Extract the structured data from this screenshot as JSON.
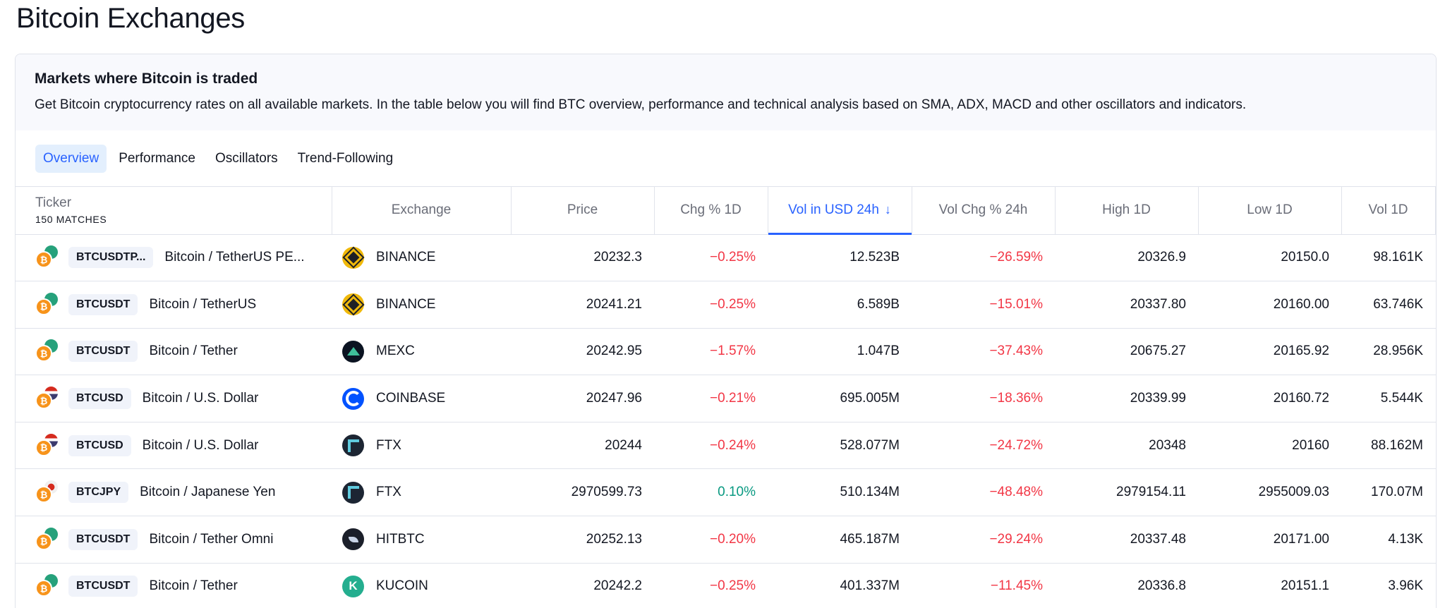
{
  "page": {
    "title": "Bitcoin Exchanges"
  },
  "card": {
    "heading": "Markets where Bitcoin is traded",
    "description": "Get Bitcoin cryptocurrency rates on all available markets. In the table below you will find BTC overview, performance and technical analysis based on SMA, ADX, MACD and other oscillators and indicators."
  },
  "tabs": [
    {
      "label": "Overview",
      "active": true
    },
    {
      "label": "Performance",
      "active": false
    },
    {
      "label": "Oscillators",
      "active": false
    },
    {
      "label": "Trend-Following",
      "active": false
    }
  ],
  "table": {
    "columns": {
      "ticker": "Ticker",
      "matches": "150 MATCHES",
      "exchange": "Exchange",
      "price": "Price",
      "chg": "Chg % 1D",
      "vol_usd": "Vol in USD 24h",
      "vol_chg": "Vol Chg % 24h",
      "high": "High 1D",
      "low": "Low 1D",
      "vol": "Vol 1D"
    },
    "sort_icon": "arrow-down-icon",
    "rows": [
      {
        "symbol": "BTCUSDTP...",
        "quote": "usdt",
        "name": "Bitcoin / TetherUS PE...",
        "exchange": "BINANCE",
        "logo": "binance",
        "price": "20232.3",
        "chg": "−0.25%",
        "chg_dir": "neg",
        "vol_usd": "12.523B",
        "vol_chg": "−26.59%",
        "high": "20326.9",
        "low": "20150.0",
        "vol": "98.161K"
      },
      {
        "symbol": "BTCUSDT",
        "quote": "usdt",
        "name": "Bitcoin / TetherUS",
        "exchange": "BINANCE",
        "logo": "binance",
        "price": "20241.21",
        "chg": "−0.25%",
        "chg_dir": "neg",
        "vol_usd": "6.589B",
        "vol_chg": "−15.01%",
        "high": "20337.80",
        "low": "20160.00",
        "vol": "63.746K"
      },
      {
        "symbol": "BTCUSDT",
        "quote": "usdt",
        "name": "Bitcoin / Tether",
        "exchange": "MEXC",
        "logo": "mexc",
        "price": "20242.95",
        "chg": "−1.57%",
        "chg_dir": "neg",
        "vol_usd": "1.047B",
        "vol_chg": "−37.43%",
        "high": "20675.27",
        "low": "20165.92",
        "vol": "28.956K"
      },
      {
        "symbol": "BTCUSD",
        "quote": "usd",
        "name": "Bitcoin / U.S. Dollar",
        "exchange": "COINBASE",
        "logo": "coinbase",
        "price": "20247.96",
        "chg": "−0.21%",
        "chg_dir": "neg",
        "vol_usd": "695.005M",
        "vol_chg": "−18.36%",
        "high": "20339.99",
        "low": "20160.72",
        "vol": "5.544K"
      },
      {
        "symbol": "BTCUSD",
        "quote": "usd",
        "name": "Bitcoin / U.S. Dollar",
        "exchange": "FTX",
        "logo": "ftx",
        "price": "20244",
        "chg": "−0.24%",
        "chg_dir": "neg",
        "vol_usd": "528.077M",
        "vol_chg": "−24.72%",
        "high": "20348",
        "low": "20160",
        "vol": "88.162M"
      },
      {
        "symbol": "BTCJPY",
        "quote": "jpy",
        "name": "Bitcoin / Japanese Yen",
        "exchange": "FTX",
        "logo": "ftx",
        "price": "2970599.73",
        "chg": "0.10%",
        "chg_dir": "pos",
        "vol_usd": "510.134M",
        "vol_chg": "−48.48%",
        "high": "2979154.11",
        "low": "2955009.03",
        "vol": "170.07M"
      },
      {
        "symbol": "BTCUSDT",
        "quote": "usdt",
        "name": "Bitcoin / Tether Omni",
        "exchange": "HITBTC",
        "logo": "hitbtc",
        "price": "20252.13",
        "chg": "−0.20%",
        "chg_dir": "neg",
        "vol_usd": "465.187M",
        "vol_chg": "−29.24%",
        "high": "20337.48",
        "low": "20171.00",
        "vol": "4.13K"
      },
      {
        "symbol": "BTCUSDT",
        "quote": "usdt",
        "name": "Bitcoin / Tether",
        "exchange": "KUCOIN",
        "logo": "kucoin",
        "price": "20242.2",
        "chg": "−0.25%",
        "chg_dir": "neg",
        "vol_usd": "401.337M",
        "vol_chg": "−11.45%",
        "high": "20336.8",
        "low": "20151.1",
        "vol": "3.96K"
      }
    ]
  },
  "colors": {
    "accent": "#2962ff",
    "negative": "#f23645",
    "positive": "#089981",
    "bitcoin": "#f7931a"
  }
}
